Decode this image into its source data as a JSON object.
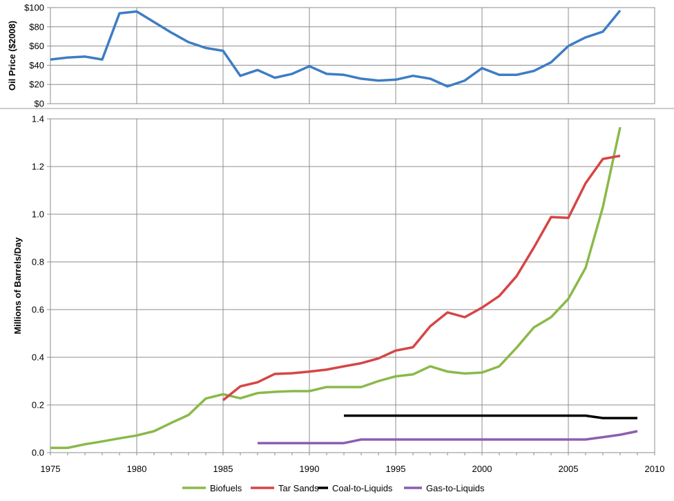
{
  "chart_data": [
    {
      "type": "line",
      "ylabel": "Oil Price ($2008)",
      "xlim": [
        1975,
        2010
      ],
      "ylim": [
        0,
        100
      ],
      "yticks": [
        "$0",
        "$20",
        "$40",
        "$60",
        "$80",
        "$100"
      ],
      "grid": true,
      "series": [
        {
          "color": "#3d7dc4",
          "x": [
            1975,
            1976,
            1977,
            1978,
            1979,
            1980,
            1981,
            1982,
            1983,
            1984,
            1985,
            1986,
            1987,
            1988,
            1989,
            1990,
            1991,
            1992,
            1993,
            1994,
            1995,
            1996,
            1997,
            1998,
            1999,
            2000,
            2001,
            2002,
            2003,
            2004,
            2005,
            2006,
            2007,
            2008
          ],
          "y": [
            46,
            48,
            49,
            46,
            94,
            96,
            85,
            74,
            64,
            58,
            55,
            29,
            35,
            27,
            31,
            39,
            31,
            30,
            26,
            24,
            25,
            29,
            26,
            18,
            24,
            37,
            30,
            30,
            34,
            43,
            60,
            69,
            75,
            97
          ]
        }
      ]
    },
    {
      "type": "line",
      "ylabel": "Millions of Barrels/Day",
      "xlim": [
        1975,
        2010
      ],
      "ylim": [
        0,
        1.4
      ],
      "xticks": [
        "1975",
        "1980",
        "1985",
        "1990",
        "1995",
        "2000",
        "2005",
        "2010"
      ],
      "yticks": [
        "0.0",
        "0.2",
        "0.4",
        "0.6",
        "0.8",
        "1.0",
        "1.2",
        "1.4"
      ],
      "grid": true,
      "legend": "bottom",
      "series": [
        {
          "name": "Biofuels",
          "color": "#8ab94a",
          "x": [
            1975,
            1976,
            1977,
            1978,
            1979,
            1980,
            1981,
            1982,
            1983,
            1984,
            1985,
            1986,
            1987,
            1988,
            1989,
            1990,
            1991,
            1992,
            1993,
            1994,
            1995,
            1996,
            1997,
            1998,
            1999,
            2000,
            2001,
            2002,
            2003,
            2004,
            2005,
            2006,
            2007,
            2008
          ],
          "y": [
            0.02,
            0.02,
            0.035,
            0.047,
            0.06,
            0.072,
            0.09,
            0.125,
            0.158,
            0.227,
            0.245,
            0.228,
            0.25,
            0.255,
            0.258,
            0.258,
            0.275,
            0.275,
            0.275,
            0.3,
            0.32,
            0.328,
            0.362,
            0.34,
            0.332,
            0.336,
            0.362,
            0.44,
            0.525,
            0.568,
            0.645,
            0.775,
            1.03,
            1.365
          ]
        },
        {
          "name": "Tar Sands",
          "color": "#d64545",
          "x": [
            1985,
            1986,
            1987,
            1988,
            1989,
            1990,
            1991,
            1992,
            1993,
            1994,
            1995,
            1996,
            1997,
            1998,
            1999,
            2000,
            2001,
            2002,
            2003,
            2004,
            2005,
            2006,
            2007,
            2008
          ],
          "y": [
            0.22,
            0.278,
            0.295,
            0.33,
            0.333,
            0.34,
            0.348,
            0.362,
            0.375,
            0.395,
            0.428,
            0.442,
            0.53,
            0.588,
            0.568,
            0.608,
            0.657,
            0.74,
            0.86,
            0.988,
            0.985,
            1.13,
            1.232,
            1.245
          ]
        },
        {
          "name": "Coal-to-Liquids",
          "color": "#000000",
          "x": [
            1992,
            1993,
            1994,
            1995,
            1996,
            1997,
            1998,
            1999,
            2000,
            2001,
            2002,
            2003,
            2004,
            2005,
            2006,
            2007,
            2008,
            2009
          ],
          "y": [
            0.155,
            0.155,
            0.155,
            0.155,
            0.155,
            0.155,
            0.155,
            0.155,
            0.155,
            0.155,
            0.155,
            0.155,
            0.155,
            0.155,
            0.155,
            0.145,
            0.145,
            0.145
          ]
        },
        {
          "name": "Gas-to-Liquids",
          "color": "#8c5db0",
          "x": [
            1987,
            1988,
            1989,
            1990,
            1991,
            1992,
            1993,
            1994,
            1995,
            1996,
            1997,
            1998,
            1999,
            2000,
            2001,
            2002,
            2003,
            2004,
            2005,
            2006,
            2007,
            2008,
            2009
          ],
          "y": [
            0.04,
            0.04,
            0.04,
            0.04,
            0.04,
            0.04,
            0.055,
            0.055,
            0.055,
            0.055,
            0.055,
            0.055,
            0.055,
            0.055,
            0.055,
            0.055,
            0.055,
            0.055,
            0.055,
            0.055,
            0.065,
            0.075,
            0.09
          ]
        }
      ]
    }
  ]
}
